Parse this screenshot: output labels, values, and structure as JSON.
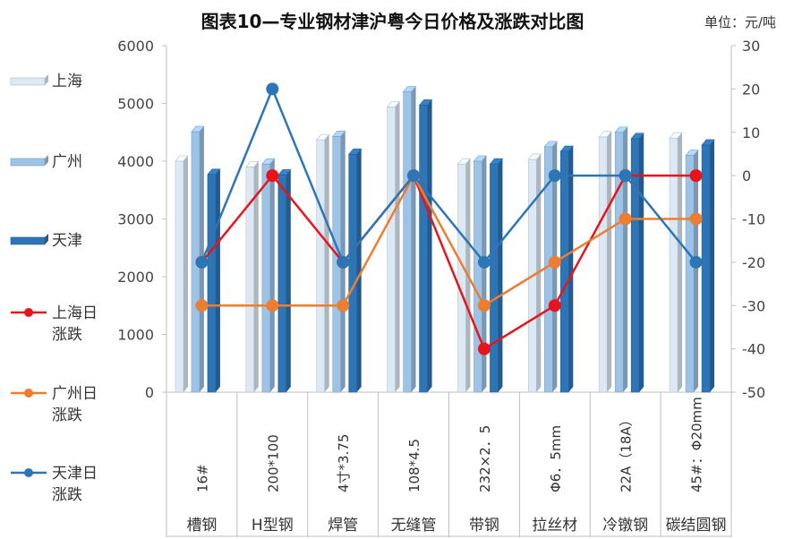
{
  "chart_data": {
    "type": "bar+line",
    "title": "图表10—专业钢材津沪粤今日价格及涨跌对比图",
    "unit": "单位：元/吨",
    "categories": [
      {
        "spec": "16#",
        "name": "槽钢"
      },
      {
        "spec": "200*100",
        "name": "H型钢"
      },
      {
        "spec": "4寸*3.75",
        "name": "焊管"
      },
      {
        "spec": "108*4.5",
        "name": "无缝管"
      },
      {
        "spec": "232×2．5",
        "name": "带钢"
      },
      {
        "spec": "Φ6．5mm",
        "name": "拉丝材"
      },
      {
        "spec": "22A（18A）",
        "name": "冷镦钢"
      },
      {
        "spec": "45#：Φ20mm",
        "name": "碳结圆钢"
      }
    ],
    "y_left": {
      "min": 0,
      "max": 6000,
      "ticks": [
        0,
        1000,
        2000,
        3000,
        4000,
        5000,
        6000
      ]
    },
    "y_right": {
      "min": -50,
      "max": 30,
      "ticks": [
        -50,
        -40,
        -30,
        -20,
        -10,
        0,
        10,
        20,
        30
      ]
    },
    "bar_series": [
      {
        "name": "上海",
        "color": "#dce9f5",
        "values": [
          4000,
          3900,
          4370,
          4940,
          3950,
          4030,
          4420,
          4400
        ]
      },
      {
        "name": "广州",
        "color": "#9dc3e6",
        "values": [
          4510,
          3950,
          4430,
          5200,
          4000,
          4250,
          4500,
          4100
        ]
      },
      {
        "name": "天津",
        "color": "#2e75b6",
        "values": [
          3770,
          3760,
          4120,
          4970,
          3950,
          4170,
          4390,
          4280
        ]
      }
    ],
    "line_series": [
      {
        "name": "上海日涨跌",
        "color": "#e8141c",
        "values": [
          -20,
          0,
          -20,
          0,
          -40,
          -30,
          0,
          0
        ]
      },
      {
        "name": "广州日涨跌",
        "color": "#ed7d31",
        "values": [
          -30,
          -30,
          -30,
          0,
          -30,
          -20,
          -10,
          -10
        ]
      },
      {
        "name": "天津日涨跌",
        "color": "#2e75b6",
        "values": [
          -20,
          20,
          -20,
          0,
          -20,
          0,
          0,
          -20
        ]
      }
    ],
    "legend_position": "left"
  }
}
